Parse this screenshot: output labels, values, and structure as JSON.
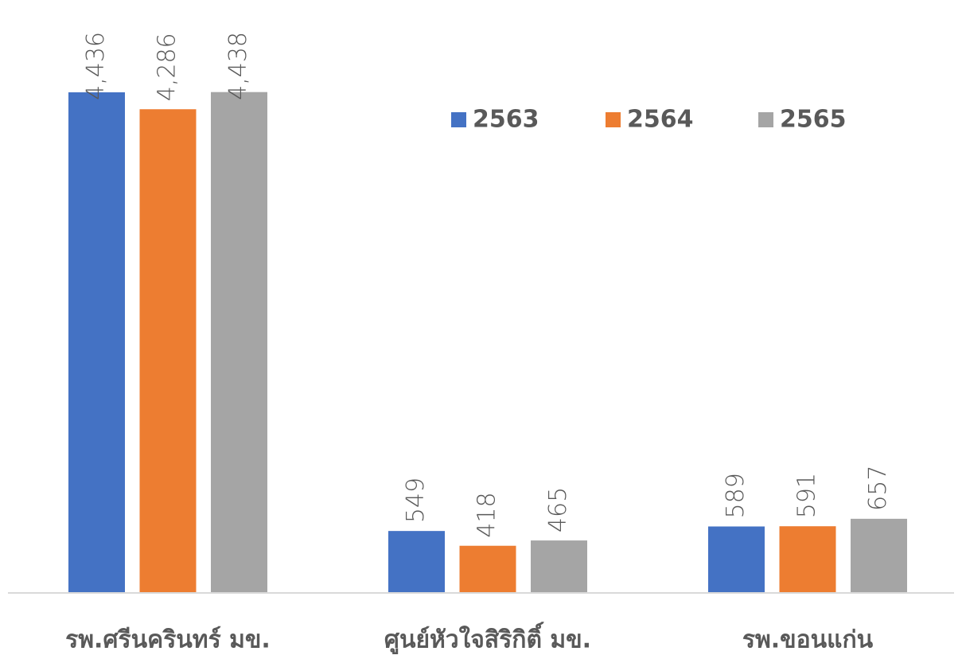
{
  "chart_data": {
    "type": "bar",
    "categories": [
      "รพ.ศรีนครินทร์ มข.",
      "ศูนย์หัวใจสิริกิติ์ มข.",
      "รพ.ขอนแก่น"
    ],
    "series": [
      {
        "name": "2563",
        "color": "#4472c4",
        "values": [
          4436,
          549,
          589
        ],
        "value_labels": [
          "4,436",
          "549",
          "589"
        ]
      },
      {
        "name": "2564",
        "color": "#ed7d31",
        "values": [
          4286,
          418,
          591
        ],
        "value_labels": [
          "4,286",
          "418",
          "591"
        ]
      },
      {
        "name": "2565",
        "color": "#a5a5a5",
        "values": [
          4438,
          465,
          657
        ],
        "value_labels": [
          "4,438",
          "465",
          "657"
        ]
      }
    ],
    "ylim": [
      0,
      5000
    ],
    "legend": "top-right"
  }
}
